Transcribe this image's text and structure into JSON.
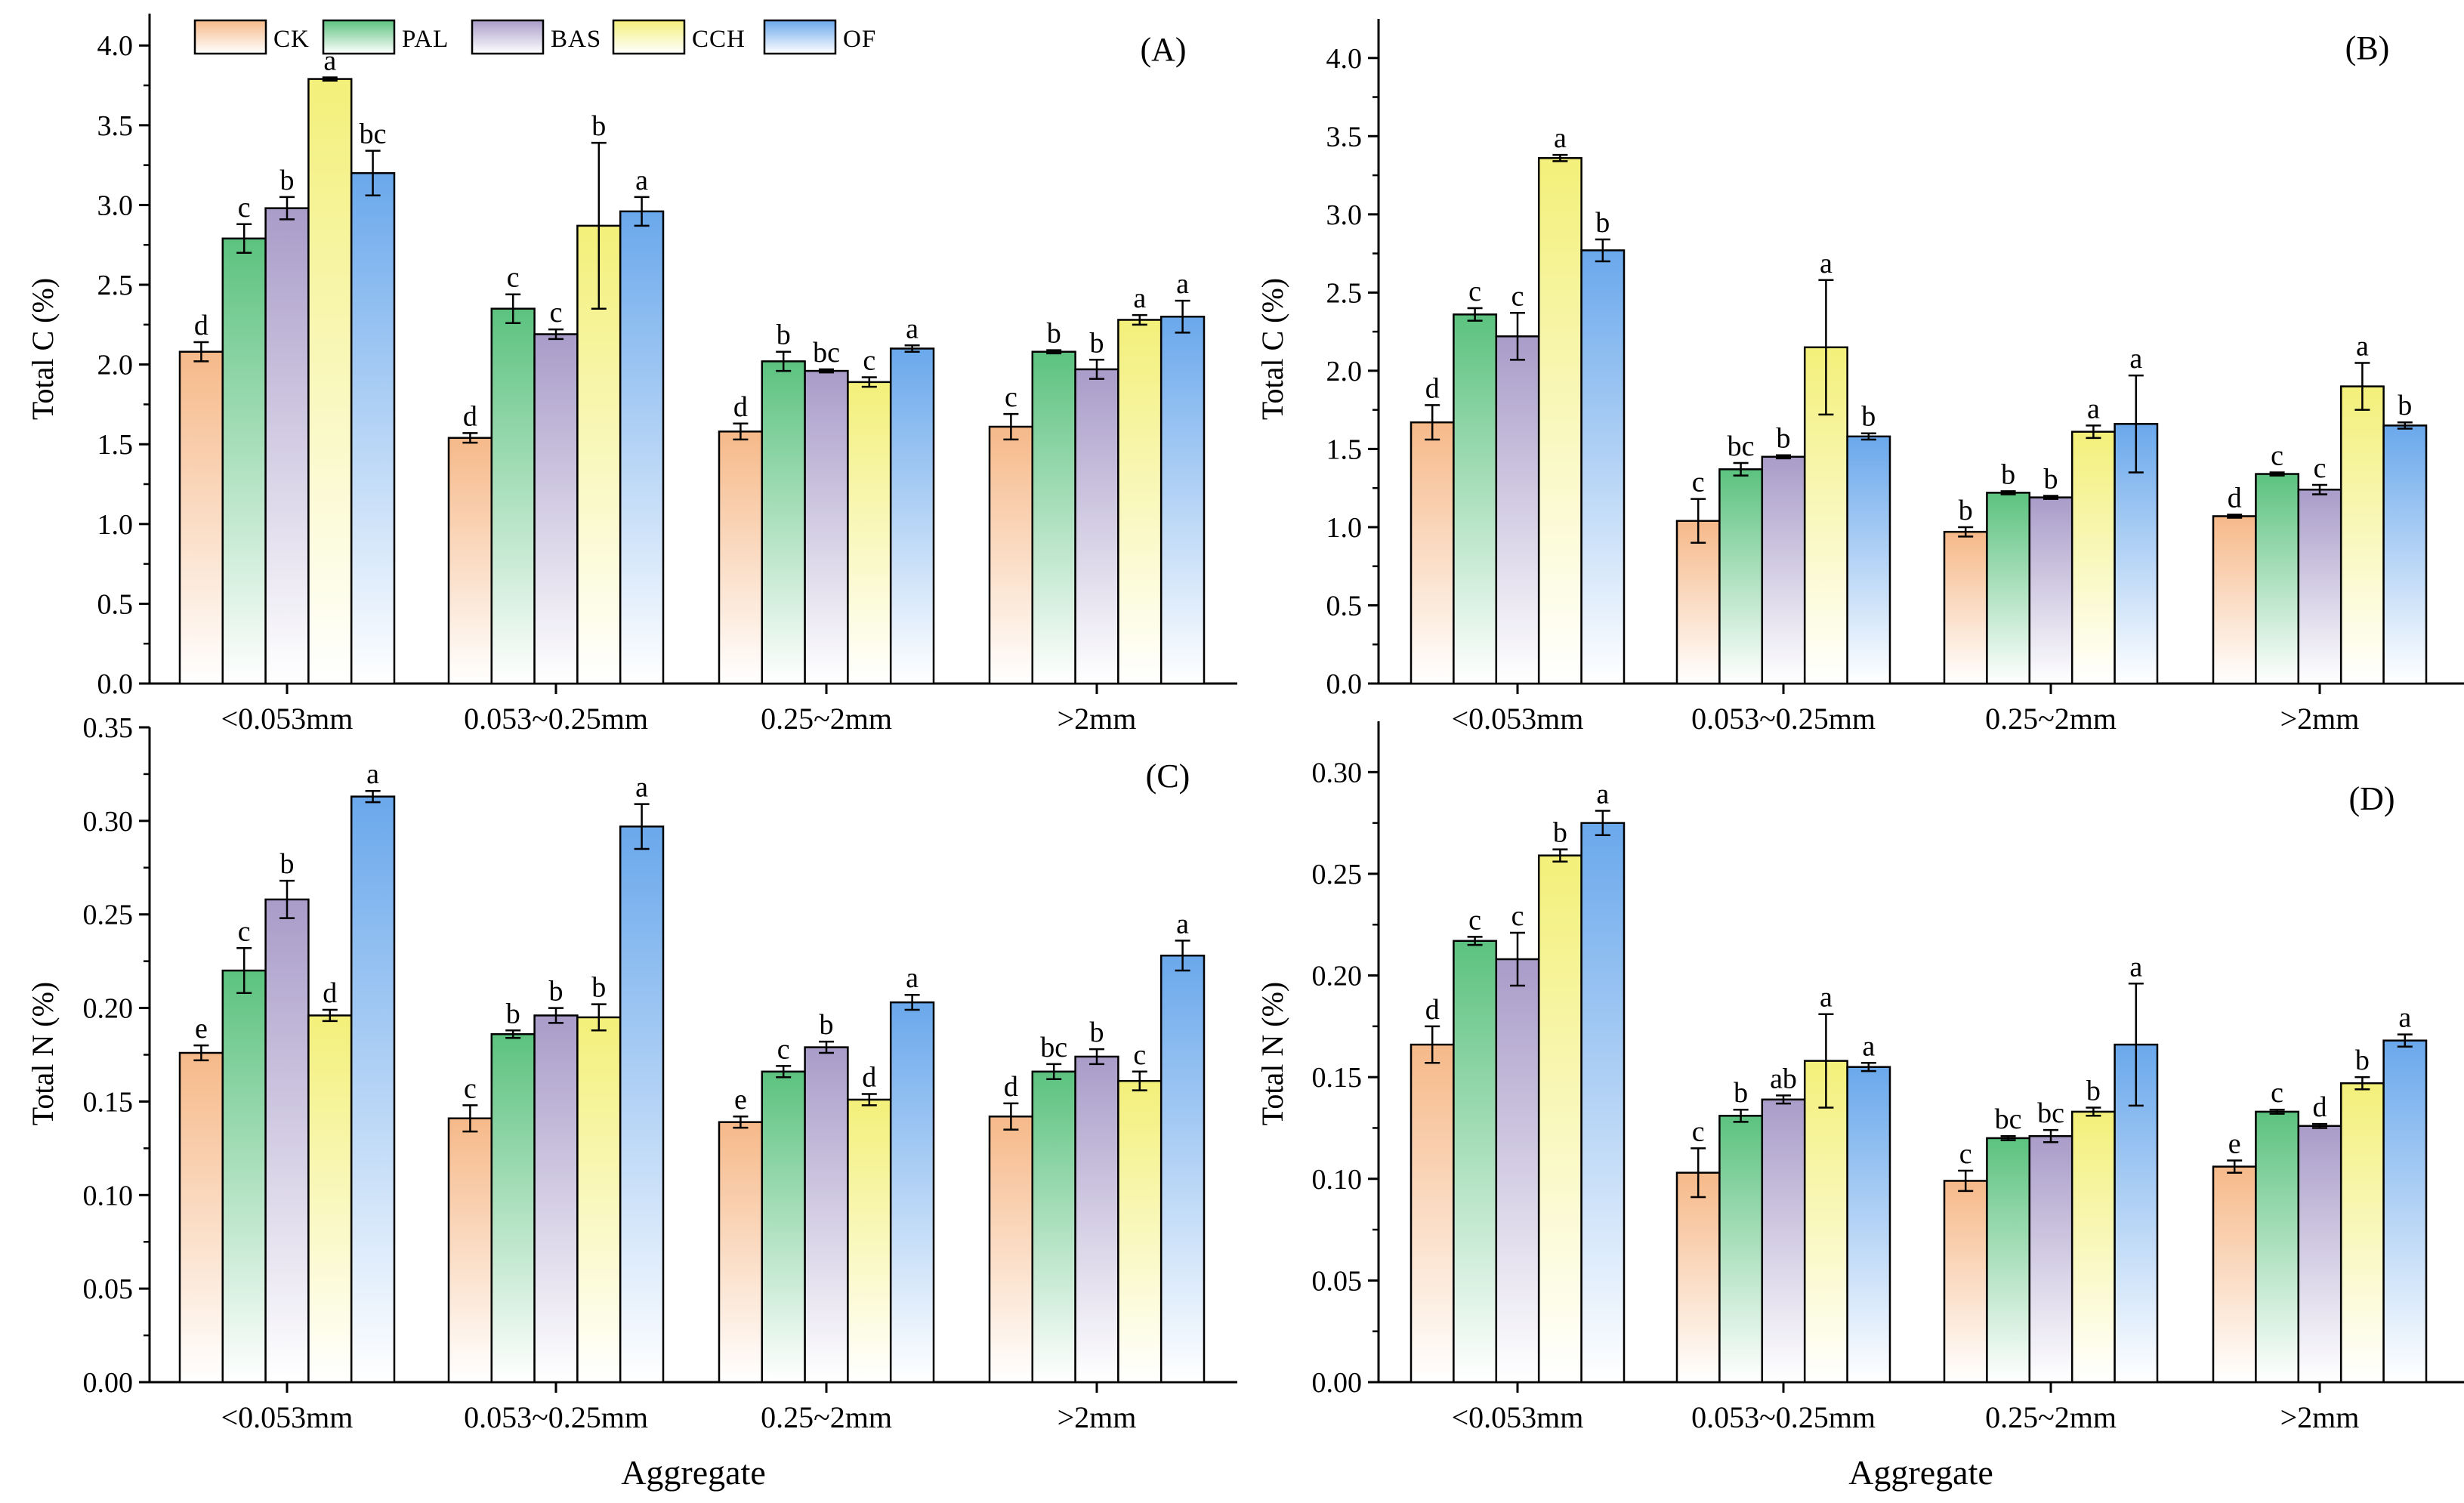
{
  "colors": {
    "CK": "#f6b989",
    "PAL": "#5cc27f",
    "BAS": "#a99cc9",
    "CCH": "#f3f07a",
    "OF": "#6aa8ec"
  },
  "legend": [
    "CK",
    "PAL",
    "BAS",
    "CCH",
    "OF"
  ],
  "x_axis_title": "Aggregate",
  "chart_data": [
    {
      "panel": "(A)",
      "type": "bar",
      "ylabel": "Total C (%)",
      "ylim": [
        0,
        4.2
      ],
      "yticks": [
        "0.0",
        "0.5",
        "1.0",
        "1.5",
        "2.0",
        "2.5",
        "3.0",
        "3.5",
        "4.0"
      ],
      "categories": [
        "<0.053mm",
        "0.053~0.25mm",
        "0.25~2mm",
        ">2mm"
      ],
      "series": [
        {
          "name": "CK",
          "values": [
            2.08,
            1.54,
            1.58,
            1.61
          ],
          "errors": [
            0.06,
            0.03,
            0.05,
            0.08
          ],
          "letters": [
            "d",
            "d",
            "d",
            "c"
          ]
        },
        {
          "name": "PAL",
          "values": [
            2.79,
            2.35,
            2.02,
            2.08
          ],
          "errors": [
            0.09,
            0.09,
            0.06,
            0.01
          ],
          "letters": [
            "c",
            "c",
            "b",
            "b"
          ]
        },
        {
          "name": "BAS",
          "values": [
            2.98,
            2.19,
            1.96,
            1.97
          ],
          "errors": [
            0.07,
            0.03,
            0.01,
            0.06
          ],
          "letters": [
            "b",
            "c",
            "bc",
            "b"
          ]
        },
        {
          "name": "CCH",
          "values": [
            3.79,
            2.87,
            1.89,
            2.28
          ],
          "errors": [
            0.01,
            0.52,
            0.03,
            0.03
          ],
          "letters": [
            "a",
            "b",
            "c",
            "a"
          ]
        },
        {
          "name": "OF",
          "values": [
            3.2,
            2.96,
            2.1,
            2.3
          ],
          "errors": [
            0.14,
            0.09,
            0.02,
            0.1
          ],
          "letters": [
            "bc",
            "a",
            "a",
            "a"
          ]
        }
      ]
    },
    {
      "panel": "(B)",
      "type": "bar",
      "ylabel": "Total C (%)",
      "ylim": [
        0,
        4.25
      ],
      "yticks": [
        "0.0",
        "0.5",
        "1.0",
        "1.5",
        "2.0",
        "2.5",
        "3.0",
        "3.5",
        "4.0"
      ],
      "categories": [
        "<0.053mm",
        "0.053~0.25mm",
        "0.25~2mm",
        ">2mm"
      ],
      "series": [
        {
          "name": "CK",
          "values": [
            1.67,
            1.04,
            0.97,
            1.07
          ],
          "errors": [
            0.11,
            0.14,
            0.03,
            0.01
          ],
          "letters": [
            "d",
            "c",
            "b",
            "d"
          ]
        },
        {
          "name": "PAL",
          "values": [
            2.36,
            1.37,
            1.22,
            1.34
          ],
          "errors": [
            0.04,
            0.04,
            0.01,
            0.01
          ],
          "letters": [
            "c",
            "bc",
            "b",
            "c"
          ]
        },
        {
          "name": "BAS",
          "values": [
            2.22,
            1.45,
            1.19,
            1.24
          ],
          "errors": [
            0.15,
            0.01,
            0.01,
            0.03
          ],
          "letters": [
            "c",
            "b",
            "b",
            "c"
          ]
        },
        {
          "name": "CCH",
          "values": [
            3.36,
            2.15,
            1.61,
            1.9
          ],
          "errors": [
            0.02,
            0.43,
            0.04,
            0.15
          ],
          "letters": [
            "a",
            "a",
            "a",
            "a"
          ]
        },
        {
          "name": "OF",
          "values": [
            2.77,
            1.58,
            1.66,
            1.65
          ],
          "errors": [
            0.07,
            0.02,
            0.31,
            0.02
          ],
          "letters": [
            "b",
            "b",
            "a",
            "b"
          ]
        }
      ]
    },
    {
      "panel": "(C)",
      "type": "bar",
      "ylabel": "Total N (%)",
      "ylim": [
        0,
        0.35
      ],
      "yticks": [
        "0.00",
        "0.05",
        "0.10",
        "0.15",
        "0.20",
        "0.25",
        "0.30",
        "0.35"
      ],
      "categories": [
        "<0.053mm",
        "0.053~0.25mm",
        "0.25~2mm",
        ">2mm"
      ],
      "series": [
        {
          "name": "CK",
          "values": [
            0.176,
            0.141,
            0.139,
            0.142
          ],
          "errors": [
            0.004,
            0.007,
            0.003,
            0.007
          ],
          "letters": [
            "e",
            "c",
            "e",
            "d"
          ]
        },
        {
          "name": "PAL",
          "values": [
            0.22,
            0.186,
            0.166,
            0.166
          ],
          "errors": [
            0.012,
            0.002,
            0.003,
            0.004
          ],
          "letters": [
            "c",
            "b",
            "c",
            "bc"
          ]
        },
        {
          "name": "BAS",
          "values": [
            0.258,
            0.196,
            0.179,
            0.174
          ],
          "errors": [
            0.01,
            0.004,
            0.003,
            0.004
          ],
          "letters": [
            "b",
            "b",
            "b",
            "b"
          ]
        },
        {
          "name": "CCH",
          "values": [
            0.196,
            0.195,
            0.151,
            0.161
          ],
          "errors": [
            0.003,
            0.007,
            0.003,
            0.005
          ],
          "letters": [
            "d",
            "b",
            "d",
            "c"
          ]
        },
        {
          "name": "OF",
          "values": [
            0.313,
            0.297,
            0.203,
            0.228
          ],
          "errors": [
            0.003,
            0.012,
            0.004,
            0.008
          ],
          "letters": [
            "a",
            "a",
            "a",
            "a"
          ]
        }
      ]
    },
    {
      "panel": "(D)",
      "type": "bar",
      "ylabel": "Total N (%)",
      "ylim": [
        0,
        0.325
      ],
      "yticks": [
        "0.00",
        "0.05",
        "0.10",
        "0.15",
        "0.20",
        "0.25",
        "0.30"
      ],
      "categories": [
        "<0.053mm",
        "0.053~0.25mm",
        "0.25~2mm",
        ">2mm"
      ],
      "series": [
        {
          "name": "CK",
          "values": [
            0.166,
            0.103,
            0.099,
            0.106
          ],
          "errors": [
            0.009,
            0.012,
            0.005,
            0.003
          ],
          "letters": [
            "d",
            "c",
            "c",
            "e"
          ]
        },
        {
          "name": "PAL",
          "values": [
            0.217,
            0.131,
            0.12,
            0.133
          ],
          "errors": [
            0.002,
            0.003,
            0.001,
            0.001
          ],
          "letters": [
            "c",
            "b",
            "bc",
            "c"
          ]
        },
        {
          "name": "BAS",
          "values": [
            0.208,
            0.139,
            0.121,
            0.126
          ],
          "errors": [
            0.013,
            0.002,
            0.003,
            0.001
          ],
          "letters": [
            "c",
            "ab",
            "bc",
            "d"
          ]
        },
        {
          "name": "CCH",
          "values": [
            0.259,
            0.158,
            0.133,
            0.147
          ],
          "errors": [
            0.003,
            0.023,
            0.002,
            0.003
          ],
          "letters": [
            "b",
            "a",
            "b",
            "b"
          ]
        },
        {
          "name": "OF",
          "values": [
            0.275,
            0.155,
            0.166,
            0.168
          ],
          "errors": [
            0.006,
            0.002,
            0.03,
            0.003
          ],
          "letters": [
            "a",
            "a",
            "a",
            "a"
          ]
        }
      ]
    }
  ]
}
